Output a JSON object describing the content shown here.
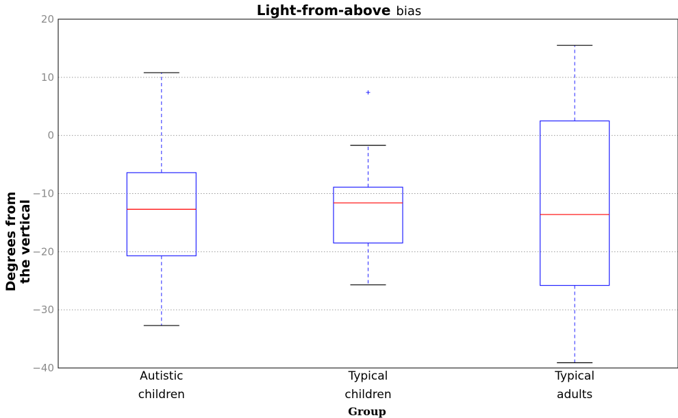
{
  "chart_data": {
    "type": "box",
    "title": {
      "bold_part": "Light-from-above",
      "normal_part": "bias"
    },
    "xlabel": "Group",
    "ylabel": [
      "Degrees from",
      "the vertical"
    ],
    "ylim": [
      -40,
      20
    ],
    "yticks": [
      20,
      10,
      0,
      -10,
      -20,
      -30,
      -40
    ],
    "ytick_labels": [
      "20",
      "10",
      "0",
      "−10",
      "−20",
      "−30",
      "−40"
    ],
    "grid": "horizontal dotted",
    "groups": [
      {
        "label_lines": [
          "Autistic",
          "children"
        ],
        "whisker_low": -32.7,
        "q1": -20.7,
        "median": -12.7,
        "q3": -6.4,
        "whisker_high": 10.8,
        "outliers": []
      },
      {
        "label_lines": [
          "Typical",
          "children"
        ],
        "whisker_low": -25.7,
        "q1": -18.5,
        "median": -11.6,
        "q3": -8.9,
        "whisker_high": -1.7,
        "outliers": [
          7.4
        ]
      },
      {
        "label_lines": [
          "Typical",
          "adults"
        ],
        "whisker_low": -39.1,
        "q1": -25.8,
        "median": -13.6,
        "q3": 2.5,
        "whisker_high": 15.5,
        "outliers": []
      }
    ],
    "colors": {
      "box": "#2222ff",
      "median": "#ff0000",
      "whisker": "#2222ff",
      "cap": "#000000",
      "grid": "#9a9a9a"
    }
  }
}
